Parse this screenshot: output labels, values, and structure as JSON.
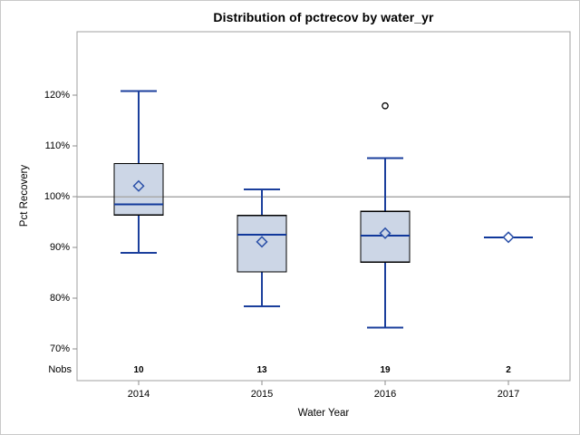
{
  "chart_data": {
    "type": "boxplot",
    "title": "Distribution of pctrecov by water_yr",
    "xlabel": "Water Year",
    "ylabel": "Pct Recovery",
    "categories": [
      "2014",
      "2015",
      "2016",
      "2017"
    ],
    "nobs": {
      "label": "Nobs",
      "values": [
        "10",
        "13",
        "19",
        "2"
      ]
    },
    "y_tick_values": [
      70,
      80,
      90,
      100,
      110,
      120
    ],
    "y_tick_labels": [
      "70%",
      "80%",
      "90%",
      "100%",
      "110%",
      "120%"
    ],
    "ylim": [
      63.75,
      132.5
    ],
    "reference_line_y": 100,
    "grid": "off",
    "legend": "none",
    "series": [
      {
        "category": "2014",
        "low": 88.9,
        "q1": 96.4,
        "median": 98.5,
        "q3": 106.5,
        "high": 120.8,
        "mean": 102.1,
        "outliers": []
      },
      {
        "category": "2015",
        "low": 78.4,
        "q1": 85.2,
        "median": 92.5,
        "q3": 96.3,
        "high": 101.4,
        "mean": 91.1,
        "outliers": []
      },
      {
        "category": "2016",
        "low": 74.2,
        "q1": 87.1,
        "median": 92.3,
        "q3": 97.1,
        "high": 107.6,
        "mean": 92.8,
        "outliers": [
          117.9
        ]
      },
      {
        "category": "2017",
        "low": 92,
        "q1": 92,
        "median": 92,
        "q3": 92,
        "high": 92,
        "mean": 92,
        "outliers": []
      }
    ],
    "colors": {
      "box_fill": "#ccd6e6",
      "box_border": "#000000",
      "whisker": "#1b3f9c",
      "median": "#10389b",
      "mean_marker": "#2a50a8",
      "outlier": "#000000",
      "reference_line": "#a9a9a9",
      "axis_border": "#a0a0a0",
      "tick": "#8c8c8c"
    }
  }
}
